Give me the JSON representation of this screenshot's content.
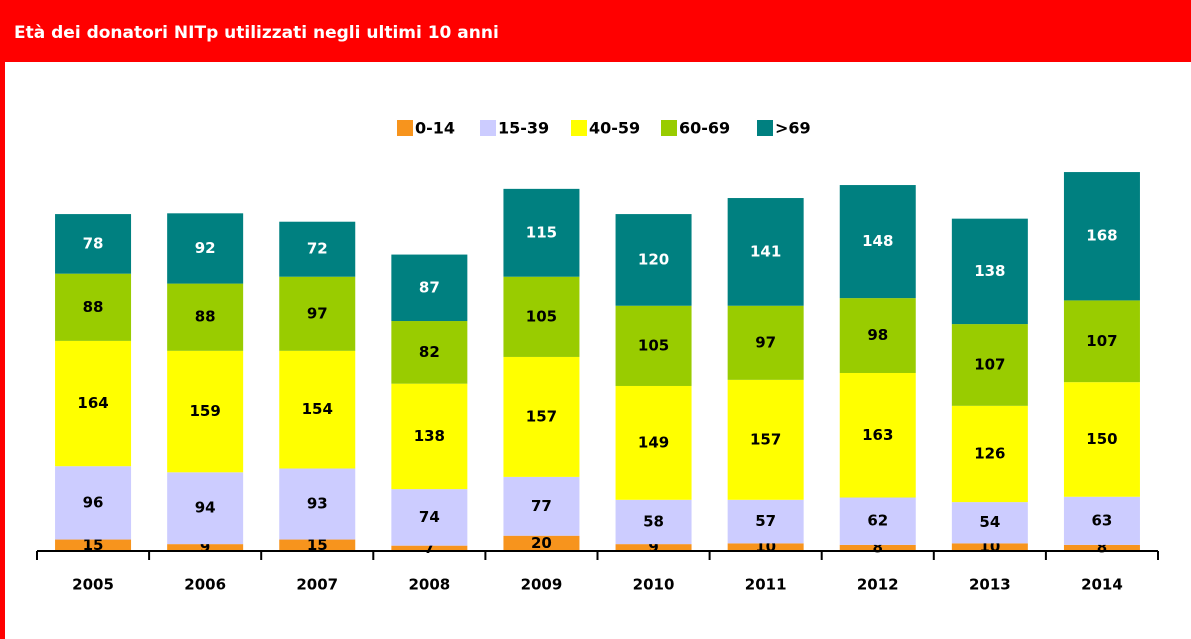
{
  "chart_data": {
    "type": "stacked_bar",
    "title": "Età dei donatori NITp utilizzati negli ultimi 10 anni",
    "categories": [
      "2005",
      "2006",
      "2007",
      "2008",
      "2009",
      "2010",
      "2011",
      "2012",
      "2013",
      "2014"
    ],
    "series": [
      {
        "name": "0-14",
        "color": "#f7941d",
        "values": [
          15,
          9,
          15,
          7,
          20,
          9,
          10,
          8,
          10,
          8
        ]
      },
      {
        "name": "15-39",
        "color": "#ccccff",
        "values": [
          96,
          94,
          93,
          74,
          77,
          58,
          57,
          62,
          54,
          63
        ]
      },
      {
        "name": "40-59",
        "color": "#ffff00",
        "values": [
          164,
          159,
          154,
          138,
          157,
          149,
          157,
          163,
          126,
          150
        ]
      },
      {
        "name": "60-69",
        "color": "#99cc00",
        "values": [
          88,
          88,
          97,
          82,
          105,
          105,
          97,
          98,
          107,
          107
        ]
      },
      {
        "name": ">69",
        "color": "#008080",
        "values": [
          78,
          92,
          72,
          87,
          115,
          120,
          141,
          148,
          138,
          168
        ]
      }
    ],
    "ylim": [
      0,
      500
    ],
    "legend": "top"
  }
}
